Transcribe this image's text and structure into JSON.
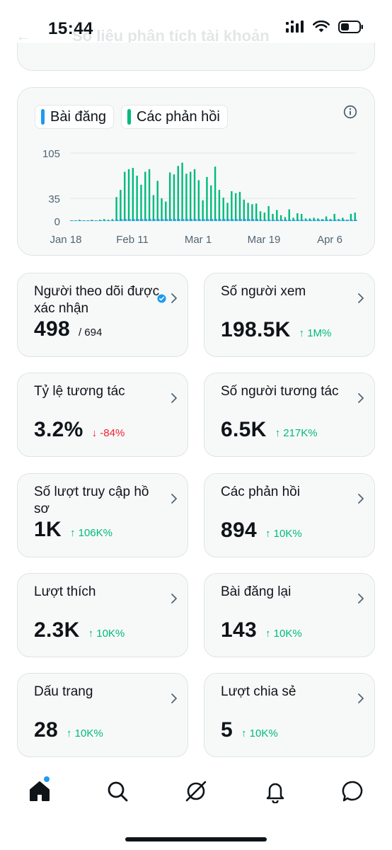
{
  "status_bar": {
    "time": "15:44"
  },
  "header": {
    "title": "Số liệu phân tích tài khoản"
  },
  "chart": {
    "legend": [
      {
        "label": "Bài đăng",
        "color": "#1d9bf0"
      },
      {
        "label": "Các phản hồi",
        "color": "#00ba7c"
      }
    ]
  },
  "chart_data": {
    "type": "bar",
    "title": "",
    "xlabel": "",
    "ylabel": "",
    "x_tick_labels": [
      "Jan 18",
      "Feb 11",
      "Mar 1",
      "Mar 19",
      "Apr 6"
    ],
    "y_tick_labels": [
      "105",
      "35",
      "0"
    ],
    "ylim": [
      0,
      105
    ],
    "grid": true,
    "series": [
      {
        "name": "Các phản hồi",
        "color": "#00ba7c",
        "values": [
          1,
          0,
          1,
          0,
          2,
          0,
          1,
          0,
          1,
          0,
          2,
          0,
          1,
          0,
          2,
          0,
          3,
          0,
          2,
          0,
          3,
          0,
          37,
          0,
          48,
          0,
          76,
          0,
          80,
          0,
          82,
          0,
          70,
          0,
          56,
          0,
          76,
          0,
          80,
          0,
          40,
          0,
          62,
          0,
          35,
          0,
          30,
          0,
          75,
          0,
          72,
          0,
          85,
          0,
          90,
          0,
          73,
          0,
          76,
          0,
          80,
          0,
          63,
          0,
          32,
          0,
          68,
          0,
          55,
          0,
          84,
          0,
          48,
          0,
          36,
          0,
          28,
          0,
          46,
          0,
          43,
          0,
          45,
          0,
          33,
          0,
          28,
          0,
          26,
          0,
          27,
          0,
          15,
          0,
          13,
          0,
          23,
          0,
          11,
          0,
          17,
          0,
          9,
          0,
          6,
          0,
          18,
          0,
          5,
          0,
          12,
          0,
          11,
          0,
          4,
          0,
          4,
          0,
          5,
          0,
          4,
          0,
          3,
          0,
          7,
          0,
          3,
          0,
          11,
          0,
          3,
          0,
          5,
          0,
          2,
          0,
          11,
          0,
          13
        ]
      },
      {
        "name": "Bài đăng",
        "color": "#1d9bf0",
        "values": [
          1,
          1,
          1,
          1,
          1,
          1,
          1,
          1,
          1,
          1,
          1,
          1,
          1,
          1,
          1,
          1,
          1,
          1,
          1,
          1,
          1,
          1,
          2,
          2,
          3,
          3,
          3,
          3,
          3,
          3,
          3,
          3,
          3,
          3,
          3,
          3,
          3,
          3,
          3,
          3,
          3,
          3,
          3,
          3,
          3,
          3,
          3,
          3,
          3,
          3,
          3,
          3,
          3,
          3,
          3,
          3,
          3,
          3,
          3,
          3,
          3,
          3,
          3,
          3,
          3,
          3,
          3,
          3,
          3,
          3,
          3,
          3,
          3,
          3,
          3,
          3,
          3,
          3,
          3,
          3,
          3,
          3,
          3,
          3,
          3,
          3,
          3,
          3,
          3,
          3,
          3,
          3,
          2,
          2,
          2,
          2,
          2,
          2,
          2,
          2,
          2,
          2,
          2,
          2,
          2,
          2,
          2,
          2,
          2,
          2,
          2,
          2,
          2,
          2,
          2,
          2,
          2,
          2,
          2,
          2,
          2,
          2,
          2,
          2,
          2,
          2,
          2,
          2,
          2,
          2,
          2,
          2,
          2,
          2,
          2,
          2,
          2,
          2,
          2,
          2
        ]
      }
    ]
  },
  "metrics": [
    {
      "label": "Người theo dõi được xác nhận",
      "value": "498",
      "sub": "/ 694",
      "change": "",
      "direction": "",
      "verified": true
    },
    {
      "label": "Số người xem",
      "value": "198.5K",
      "sub": "",
      "change": "↑ 1M%",
      "direction": "up"
    },
    {
      "label": "Tỷ lệ tương tác",
      "value": "3.2%",
      "sub": "",
      "change": "↓ -84%",
      "direction": "down"
    },
    {
      "label": "Số người tương tác",
      "value": "6.5K",
      "sub": "",
      "change": "↑ 217K%",
      "direction": "up"
    },
    {
      "label": "Số lượt truy cập hồ sơ",
      "value": "1K",
      "sub": "",
      "change": "↑ 106K%",
      "direction": "up"
    },
    {
      "label": "Các phản hồi",
      "value": "894",
      "sub": "",
      "change": "↑ 10K%",
      "direction": "up"
    },
    {
      "label": "Lượt thích",
      "value": "2.3K",
      "sub": "",
      "change": "↑ 10K%",
      "direction": "up"
    },
    {
      "label": "Bài đăng lại",
      "value": "143",
      "sub": "",
      "change": "↑ 10K%",
      "direction": "up"
    },
    {
      "label": "Dấu trang",
      "value": "28",
      "sub": "",
      "change": "↑ 10K%",
      "direction": "up"
    },
    {
      "label": "Lượt chia sẻ",
      "value": "5",
      "sub": "",
      "change": "↑ 10K%",
      "direction": "up"
    }
  ],
  "nav": {
    "items": [
      "home-icon",
      "search-icon",
      "grok-icon",
      "notifications-icon",
      "messages-icon"
    ],
    "active": "home-icon",
    "home_badge_color": "#1d9bf0"
  }
}
